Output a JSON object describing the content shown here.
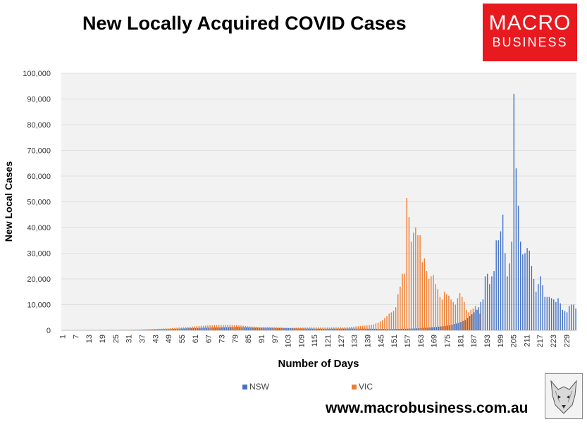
{
  "title": "New Locally Acquired COVID Cases",
  "logo": {
    "line1": "MACRO",
    "line2": "BUSINESS",
    "bg_color": "#e8191f"
  },
  "website": "www.macrobusiness.com.au",
  "chart_data": {
    "type": "bar",
    "xlabel": "Number of Days",
    "ylabel": "New Local Cases",
    "ylim": [
      0,
      100000
    ],
    "yticks": [
      0,
      10000,
      20000,
      30000,
      40000,
      50000,
      60000,
      70000,
      80000,
      90000,
      100000
    ],
    "ytick_labels": [
      "0",
      "10,000",
      "20,000",
      "30,000",
      "40,000",
      "50,000",
      "60,000",
      "70,000",
      "80,000",
      "90,000",
      "100,000"
    ],
    "xticks": [
      1,
      7,
      13,
      19,
      25,
      31,
      37,
      43,
      49,
      55,
      61,
      67,
      73,
      79,
      85,
      91,
      97,
      103,
      109,
      115,
      121,
      127,
      133,
      139,
      145,
      151,
      157,
      163,
      169,
      175,
      181,
      187,
      193,
      199,
      205,
      211,
      217,
      223,
      229
    ],
    "legend_position": "bottom",
    "series": [
      {
        "name": "NSW",
        "color": "#4472c4",
        "points": [
          [
            1,
            0
          ],
          [
            30,
            100
          ],
          [
            50,
            500
          ],
          [
            60,
            900
          ],
          [
            70,
            1100
          ],
          [
            80,
            1300
          ],
          [
            90,
            1000
          ],
          [
            100,
            900
          ],
          [
            110,
            700
          ],
          [
            120,
            600
          ],
          [
            130,
            700
          ],
          [
            140,
            600
          ],
          [
            150,
            500
          ],
          [
            160,
            700
          ],
          [
            165,
            1000
          ],
          [
            170,
            1300
          ],
          [
            174,
            1700
          ],
          [
            177,
            2200
          ],
          [
            180,
            2900
          ],
          [
            183,
            4000
          ],
          [
            185,
            5500
          ],
          [
            187,
            7000
          ],
          [
            189,
            9000
          ],
          [
            190,
            11000
          ],
          [
            191,
            12000
          ],
          [
            192,
            21000
          ],
          [
            193,
            22000
          ],
          [
            194,
            18000
          ],
          [
            195,
            21000
          ],
          [
            196,
            23000
          ],
          [
            197,
            35000
          ],
          [
            198,
            35000
          ],
          [
            199,
            38500
          ],
          [
            200,
            45000
          ],
          [
            201,
            30000
          ],
          [
            202,
            21000
          ],
          [
            203,
            26000
          ],
          [
            204,
            34500
          ],
          [
            205,
            92000
          ],
          [
            206,
            63000
          ],
          [
            207,
            48500
          ],
          [
            208,
            34500
          ],
          [
            209,
            29500
          ],
          [
            210,
            30000
          ],
          [
            211,
            32000
          ],
          [
            212,
            31000
          ],
          [
            213,
            25000
          ],
          [
            214,
            20000
          ],
          [
            215,
            15000
          ],
          [
            216,
            18000
          ],
          [
            217,
            21000
          ],
          [
            218,
            17500
          ],
          [
            219,
            13000
          ],
          [
            220,
            13000
          ],
          [
            221,
            13000
          ],
          [
            222,
            12500
          ],
          [
            223,
            12000
          ],
          [
            224,
            11000
          ],
          [
            225,
            12500
          ],
          [
            226,
            10500
          ],
          [
            227,
            8000
          ],
          [
            228,
            7500
          ],
          [
            229,
            7000
          ],
          [
            230,
            9500
          ],
          [
            231,
            10000
          ],
          [
            232,
            10000
          ],
          [
            233,
            8500
          ]
        ]
      },
      {
        "name": "VIC",
        "color": "#ed7d31",
        "points": [
          [
            1,
            0
          ],
          [
            30,
            200
          ],
          [
            37,
            300
          ],
          [
            45,
            600
          ],
          [
            55,
            1100
          ],
          [
            62,
            1600
          ],
          [
            67,
            1900
          ],
          [
            75,
            2100
          ],
          [
            80,
            2000
          ],
          [
            85,
            1600
          ],
          [
            90,
            1300
          ],
          [
            97,
            1200
          ],
          [
            103,
            1000
          ],
          [
            110,
            1100
          ],
          [
            115,
            1200
          ],
          [
            121,
            1100
          ],
          [
            127,
            1200
          ],
          [
            133,
            1400
          ],
          [
            136,
            1700
          ],
          [
            139,
            1900
          ],
          [
            142,
            2300
          ],
          [
            144,
            3000
          ],
          [
            146,
            4000
          ],
          [
            148,
            5500
          ],
          [
            149,
            6500
          ],
          [
            150,
            7000
          ],
          [
            151,
            7500
          ],
          [
            152,
            9000
          ],
          [
            153,
            14000
          ],
          [
            154,
            17000
          ],
          [
            155,
            22000
          ],
          [
            156,
            22000
          ],
          [
            157,
            51500
          ],
          [
            158,
            44000
          ],
          [
            159,
            34500
          ],
          [
            160,
            38000
          ],
          [
            161,
            40000
          ],
          [
            162,
            37000
          ],
          [
            163,
            37000
          ],
          [
            164,
            26500
          ],
          [
            165,
            28000
          ],
          [
            166,
            23000
          ],
          [
            167,
            20000
          ],
          [
            168,
            21000
          ],
          [
            169,
            21500
          ],
          [
            170,
            18000
          ],
          [
            171,
            16000
          ],
          [
            172,
            13000
          ],
          [
            173,
            12000
          ],
          [
            174,
            15000
          ],
          [
            175,
            14000
          ],
          [
            176,
            13500
          ],
          [
            177,
            12000
          ],
          [
            178,
            11000
          ],
          [
            179,
            10000
          ],
          [
            180,
            12500
          ],
          [
            181,
            14500
          ],
          [
            182,
            13000
          ],
          [
            183,
            11000
          ],
          [
            184,
            8000
          ],
          [
            185,
            7000
          ],
          [
            186,
            8000
          ],
          [
            187,
            8500
          ],
          [
            188,
            9500
          ],
          [
            189,
            8000
          ],
          [
            190,
            6500
          ]
        ]
      }
    ]
  }
}
